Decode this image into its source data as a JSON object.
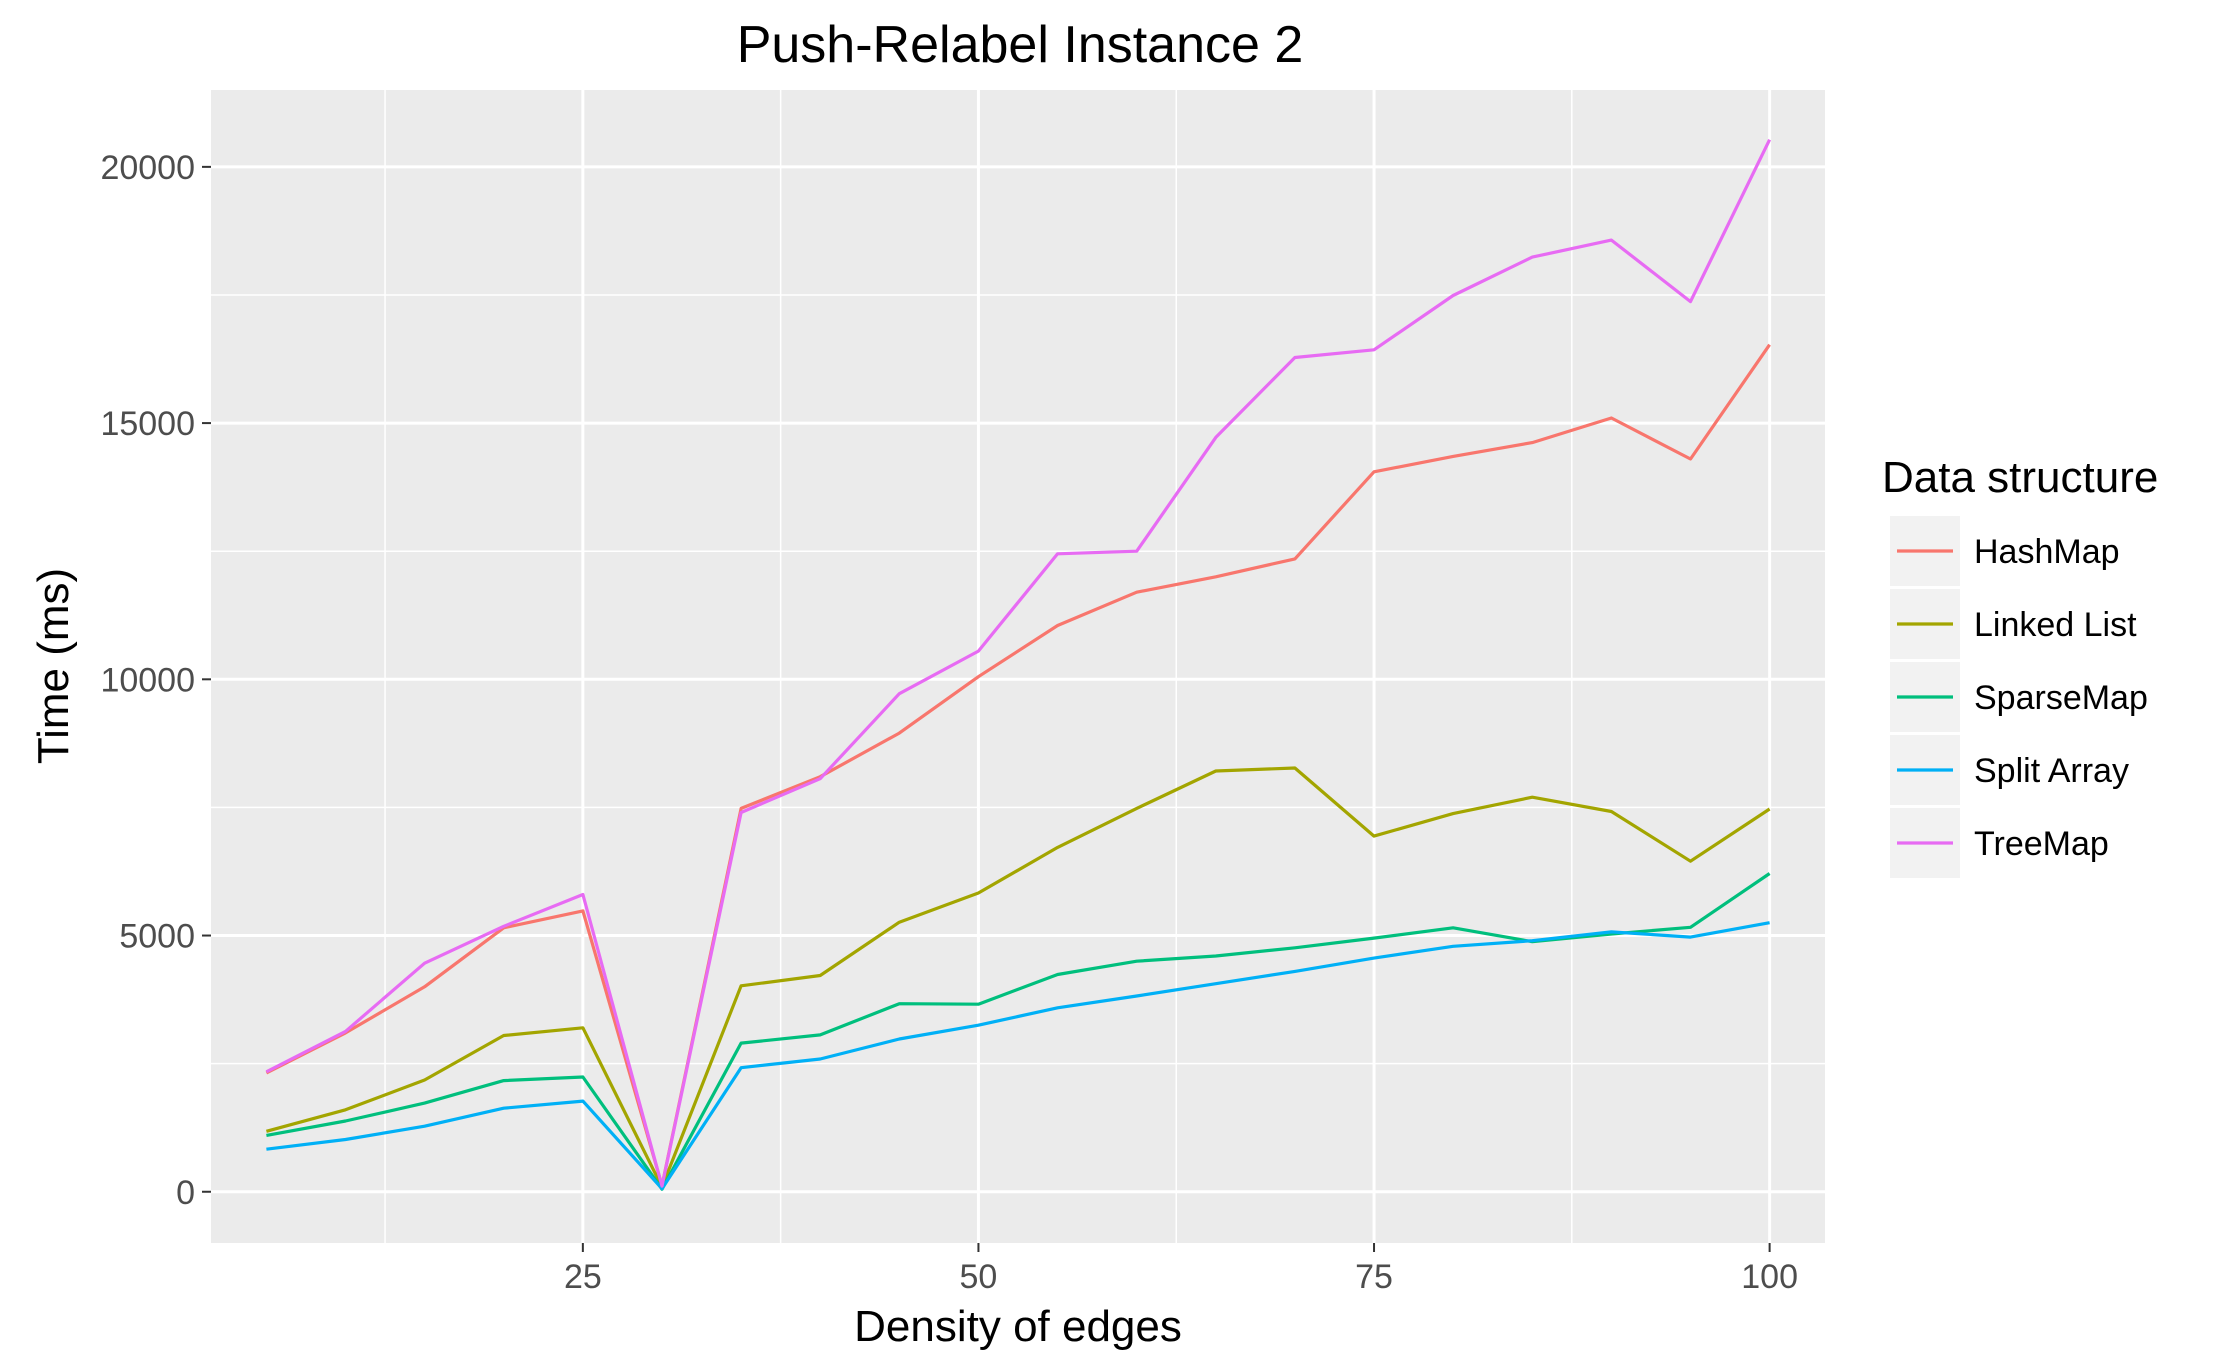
{
  "chart_data": {
    "type": "line",
    "title": "Push-Relabel Instance 2",
    "xlabel": "Density of edges",
    "ylabel": "Time (ms)",
    "xlim": [
      1.5,
      103.5
    ],
    "ylim": [
      -1000,
      21500
    ],
    "x_ticks": [
      25,
      50,
      75,
      100
    ],
    "x_minor_ticks": [
      12.5,
      37.5,
      62.5,
      87.5
    ],
    "y_ticks": [
      0,
      5000,
      10000,
      15000,
      20000
    ],
    "y_minor_ticks": [
      2500,
      7500,
      12500,
      17500
    ],
    "x_tick_labels": [
      "25",
      "50",
      "75",
      "100"
    ],
    "y_tick_labels": [
      "0",
      "5000",
      "10000",
      "15000",
      "20000"
    ],
    "grid": true,
    "legend": {
      "title": "Data structure",
      "position": "right"
    },
    "x": [
      5,
      10,
      15,
      20,
      25,
      30,
      35,
      40,
      45,
      50,
      55,
      60,
      65,
      70,
      75,
      80,
      85,
      90,
      95,
      100
    ],
    "series": [
      {
        "name": "HashMap",
        "color": "#F8766D",
        "values": [
          2320,
          3100,
          4000,
          5150,
          5480,
          120,
          7480,
          8100,
          8950,
          10050,
          11050,
          11700,
          12000,
          12350,
          14050,
          14350,
          14620,
          15100,
          14300,
          16530
        ]
      },
      {
        "name": "Linked List",
        "color": "#A3A500",
        "values": [
          1180,
          1600,
          2180,
          3050,
          3200,
          90,
          4020,
          4220,
          5260,
          5830,
          6720,
          7480,
          8210,
          8270,
          6940,
          7380,
          7700,
          7420,
          6450,
          7470
        ]
      },
      {
        "name": "SparseMap",
        "color": "#00BF7D",
        "values": [
          1100,
          1380,
          1730,
          2170,
          2240,
          50,
          2900,
          3060,
          3670,
          3660,
          4240,
          4500,
          4600,
          4760,
          4950,
          5150,
          4880,
          5030,
          5160,
          6210
        ]
      },
      {
        "name": "Split Array",
        "color": "#00B0F6",
        "values": [
          830,
          1020,
          1280,
          1630,
          1770,
          60,
          2420,
          2590,
          2980,
          3250,
          3590,
          3820,
          4060,
          4300,
          4560,
          4790,
          4900,
          5070,
          4970,
          5250
        ]
      },
      {
        "name": "TreeMap",
        "color": "#E76BF3",
        "values": [
          2340,
          3130,
          4460,
          5180,
          5800,
          110,
          7400,
          8060,
          9720,
          10550,
          12450,
          12500,
          14720,
          16280,
          16430,
          17490,
          18240,
          18570,
          17370,
          20530
        ]
      }
    ]
  }
}
